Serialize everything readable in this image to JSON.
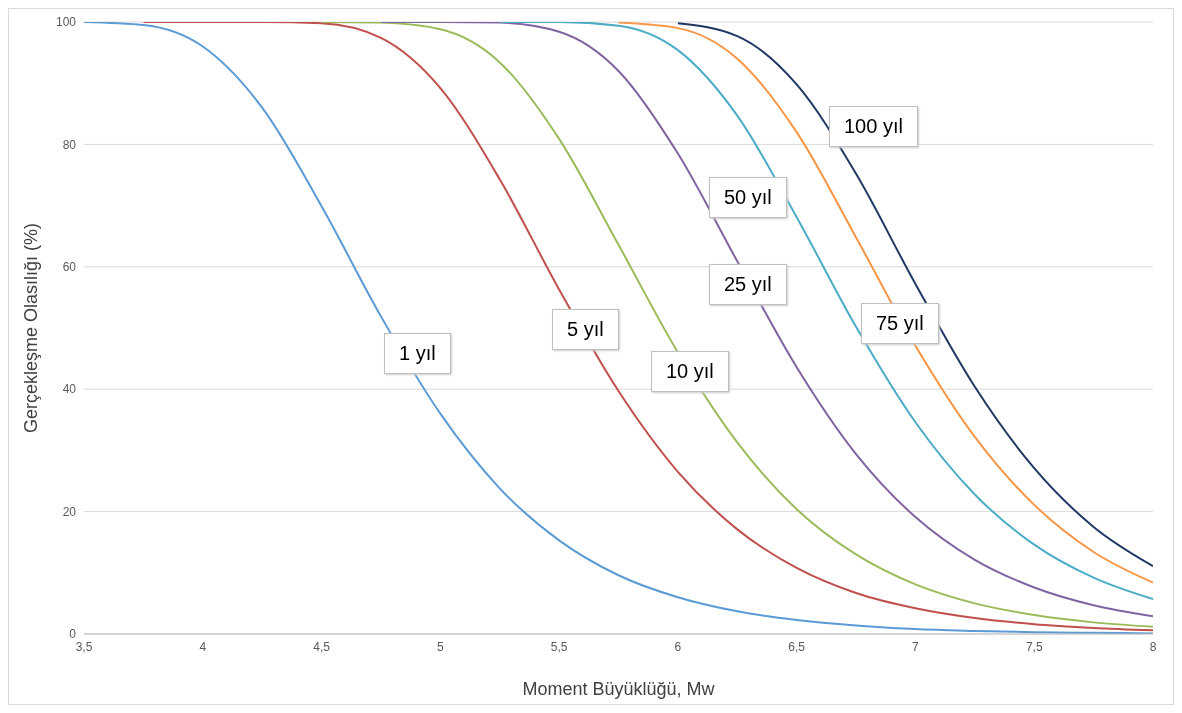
{
  "chart_data": {
    "type": "line",
    "xlabel": "Moment Büyüklüğü, Mw",
    "ylabel": "Gerçekleşme Olasılığı (%)",
    "x": [
      3.5,
      3.75,
      4,
      4.25,
      4.5,
      4.75,
      5,
      5.25,
      5.5,
      5.75,
      6,
      6.25,
      6.5,
      6.75,
      7,
      7.25,
      7.5,
      7.75,
      8
    ],
    "series": [
      {
        "name": "1 yıl",
        "color": "#5b9bd5",
        "values": [
          100,
          99.5,
          96.0,
          86.0,
          69.9,
          51.9,
          36.0,
          23.8,
          15.3,
          9.6,
          6.0,
          3.7,
          2.3,
          1.4,
          0.8,
          0.5,
          0.3,
          0.2,
          0.1
        ]
      },
      {
        "name": "5 yıl",
        "color": "#c0504d",
        "values": [
          null,
          100,
          100,
          100,
          99.8,
          97.4,
          89.2,
          74.3,
          56.3,
          39.7,
          26.5,
          17.1,
          10.8,
          6.7,
          4.2,
          2.6,
          1.6,
          1.0,
          0.6
        ]
      },
      {
        "name": "10 yıl",
        "color": "#9bbb59",
        "values": [
          null,
          null,
          null,
          null,
          100,
          99.9,
          98.8,
          93.4,
          80.9,
          63.6,
          46.0,
          31.3,
          20.4,
          13.0,
          8.1,
          5.0,
          3.1,
          1.9,
          1.2
        ]
      },
      {
        "name": "25 yıl",
        "color": "#8064a2",
        "values": [
          null,
          null,
          null,
          null,
          null,
          100,
          100,
          99.9,
          98.4,
          92.0,
          78.5,
          60.9,
          43.6,
          29.4,
          19.1,
          12.1,
          7.6,
          4.7,
          2.9
        ]
      },
      {
        "name": "50 yıl",
        "color": "#4bacc6",
        "values": [
          null,
          null,
          null,
          null,
          null,
          null,
          null,
          100,
          100,
          99.4,
          95.4,
          84.7,
          68.1,
          50.2,
          34.6,
          22.8,
          14.6,
          9.2,
          5.7
        ]
      },
      {
        "name": "75 yıl",
        "color": "#f79646",
        "values": [
          null,
          null,
          null,
          null,
          null,
          null,
          null,
          null,
          null,
          99.9,
          99.0,
          94.0,
          82.0,
          64.8,
          47.1,
          32.2,
          21.1,
          13.4,
          8.4
        ]
      },
      {
        "name": "100 yıl",
        "color": "#1f3864",
        "values": [
          null,
          null,
          null,
          null,
          null,
          null,
          null,
          null,
          null,
          null,
          99.8,
          97.7,
          89.8,
          75.2,
          57.2,
          40.4,
          27.1,
          17.5,
          11.1
        ]
      }
    ],
    "xlim": [
      3.5,
      8
    ],
    "xticks": [
      {
        "value": 3.5,
        "label": "3,5"
      },
      4,
      {
        "value": 4.5,
        "label": "4,5"
      },
      5,
      {
        "value": 5.5,
        "label": "5,5"
      },
      6,
      {
        "value": 6.5,
        "label": "6,5"
      },
      7,
      {
        "value": 7.5,
        "label": "7,5"
      },
      8
    ],
    "ylim": [
      0,
      100
    ],
    "yticks": [
      0,
      20,
      40,
      60,
      80,
      100
    ],
    "grid": "y",
    "legend": false,
    "marker": "none",
    "line_style": "solid"
  }
}
